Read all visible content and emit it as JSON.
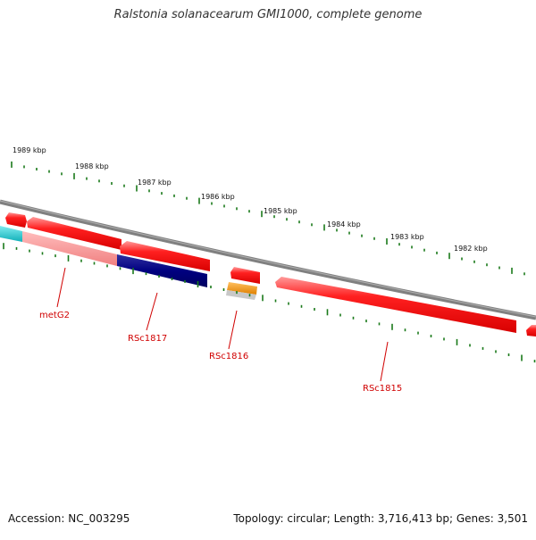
{
  "title": "Ralstonia solanacearum GMI1000, complete genome",
  "footer": {
    "accession": "Accession: NC_003295",
    "summary": "Topology: circular; Length: 3,716,413 bp; Genes: 3,501"
  },
  "kbp_labels": [
    "1989 kbp",
    "1988 kbp",
    "1987 kbp",
    "1986 kbp",
    "1985 kbp",
    "1984 kbp",
    "1983 kbp",
    "1982 kbp"
  ],
  "gene_labels": [
    "metG2",
    "RSc1817",
    "RSc1816",
    "RSc1815"
  ],
  "colors": {
    "cds": "#ff0000",
    "tick": "#1a7a1a",
    "backbone": "#808080",
    "gene_label": "#d00000",
    "dark_feature": "#000080",
    "cyan_feature": "#20c0c8",
    "orange_feature": "#ff9900"
  }
}
